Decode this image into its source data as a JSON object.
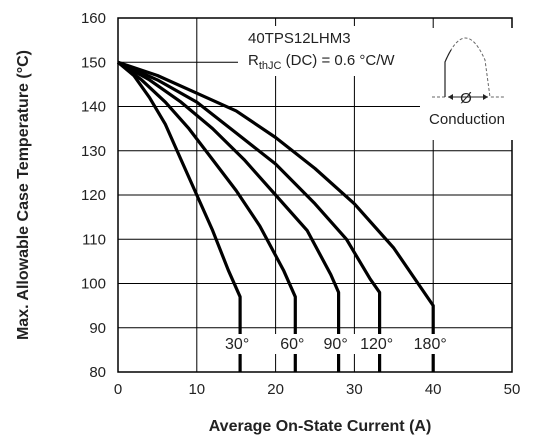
{
  "chart_data": {
    "type": "line",
    "title": "",
    "xlabel": "Average On-State Current (A)",
    "ylabel": "Max. Allowable Case Temperature (°C)",
    "xlim": [
      0,
      50
    ],
    "ylim": [
      80,
      160
    ],
    "x_ticks": [
      "0",
      "10",
      "20",
      "30",
      "40",
      "50"
    ],
    "y_ticks": [
      "80",
      "90",
      "100",
      "110",
      "120",
      "130",
      "140",
      "150",
      "160"
    ],
    "grid": true,
    "annotation": {
      "part_number": "40TPS12LHM3",
      "rth_symbol": "R",
      "rth_subscript": "thJC",
      "rth_text": " (DC) = 0.6 °C/W",
      "conduction_label": "Conduction",
      "phi_symbol": "Ø"
    },
    "series": [
      {
        "name": "30°",
        "x": [
          0,
          2,
          4,
          6,
          8,
          10,
          12,
          14,
          15.5,
          15.5
        ],
        "y": [
          150,
          147,
          142,
          136,
          128,
          120,
          112,
          103,
          97,
          80
        ]
      },
      {
        "name": "60°",
        "x": [
          0,
          3,
          6,
          9,
          12,
          15,
          18,
          21,
          22.5,
          22.5
        ],
        "y": [
          150,
          146,
          141,
          135,
          128,
          121,
          113,
          103,
          97,
          80
        ]
      },
      {
        "name": "90°",
        "x": [
          0,
          4,
          8,
          12,
          16,
          20,
          24,
          27,
          28,
          28
        ],
        "y": [
          150,
          146,
          141,
          135,
          128,
          120,
          112,
          102,
          98,
          80
        ]
      },
      {
        "name": "120°",
        "x": [
          0,
          5,
          10,
          15,
          20,
          25,
          29,
          32,
          33.2,
          33.2
        ],
        "y": [
          150,
          146,
          141,
          134,
          127,
          118,
          110,
          101,
          98,
          80
        ]
      },
      {
        "name": "180°",
        "x": [
          0,
          5,
          10,
          15,
          20,
          25,
          30,
          35,
          40,
          40
        ],
        "y": [
          150,
          147,
          143,
          139,
          133,
          126,
          118,
          108,
          95,
          80
        ]
      }
    ]
  }
}
